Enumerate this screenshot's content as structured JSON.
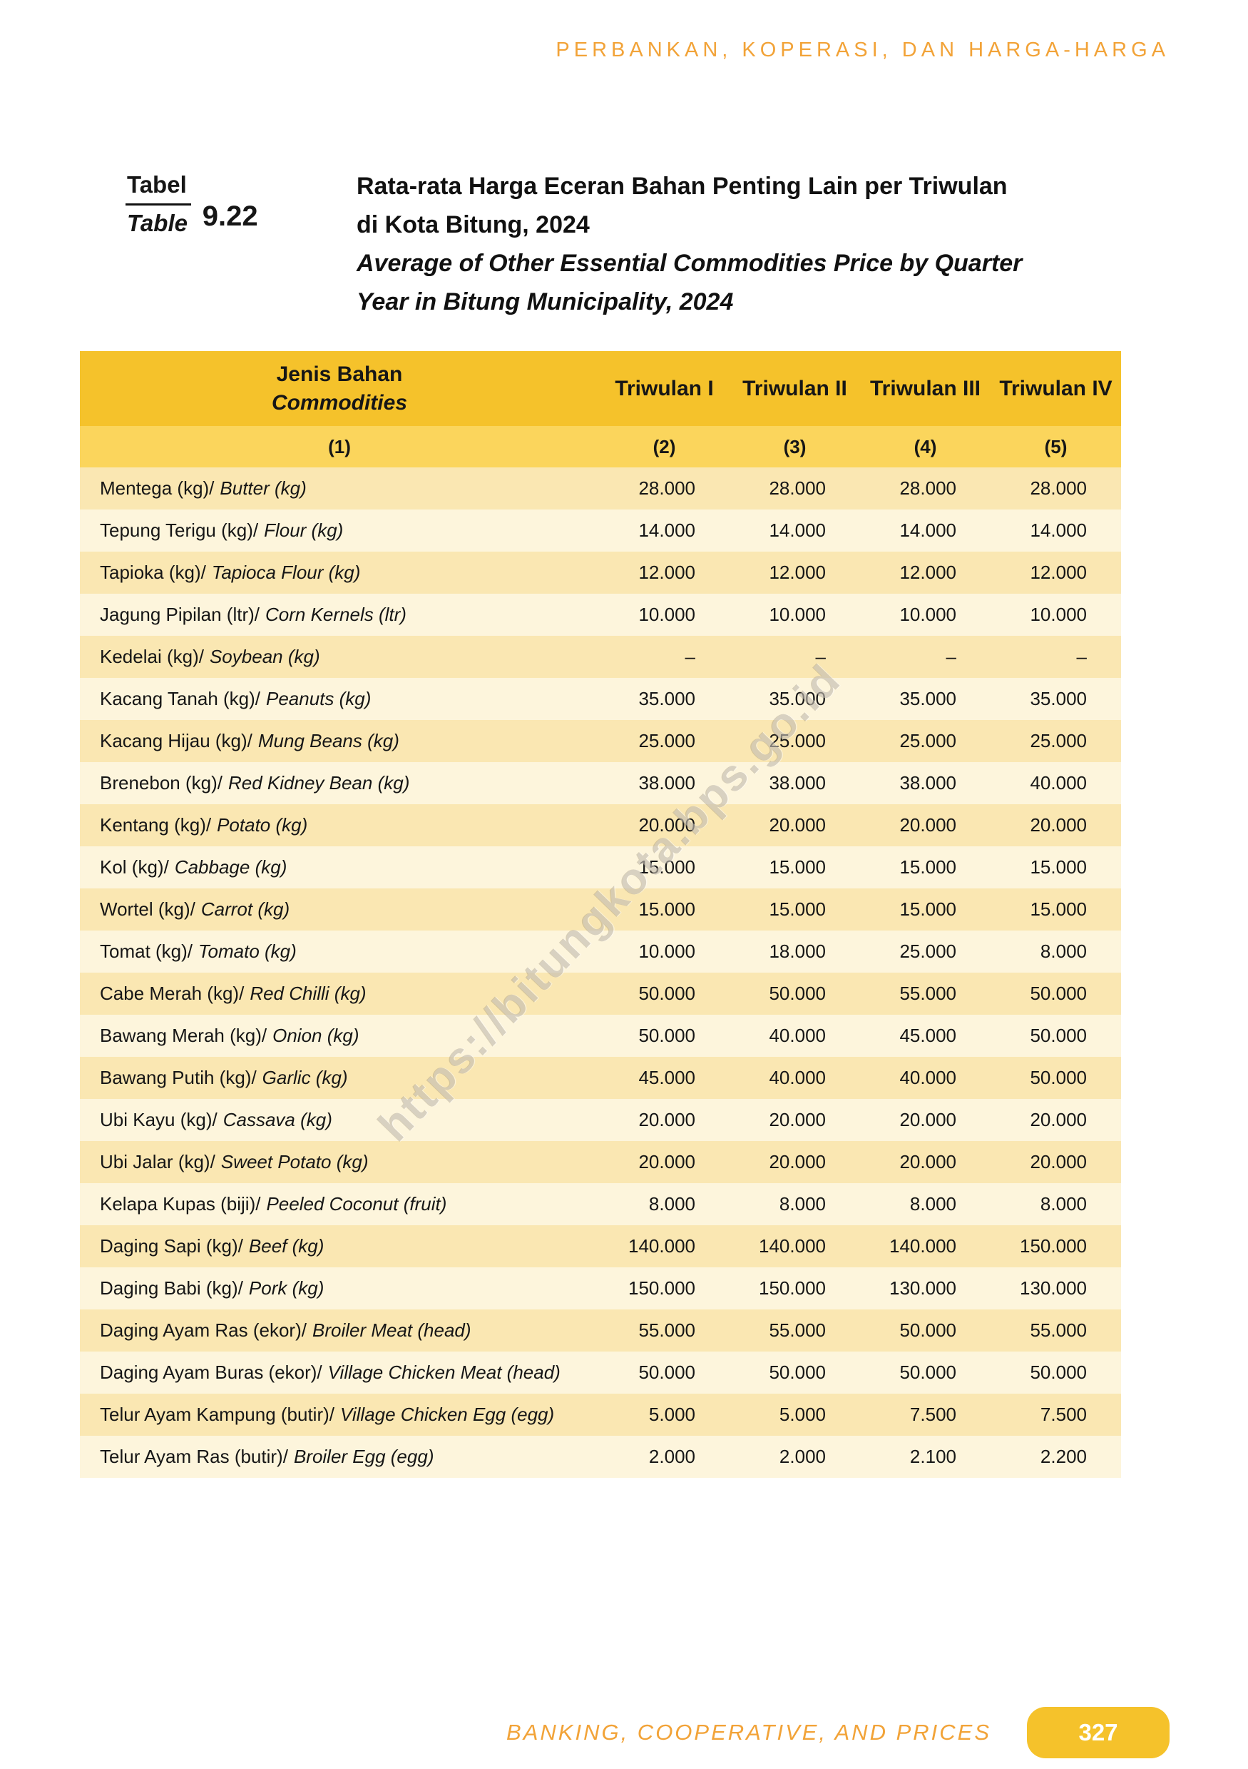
{
  "page": {
    "header": "PERBANKAN, KOPERASI, DAN HARGA-HARGA",
    "footer_text": "BANKING, COOPERATIVE, AND PRICES",
    "page_number": "327",
    "watermark": "https://bitungkota.bps.go.id"
  },
  "table_label": {
    "id_label": "Tabel",
    "en_label": "Table",
    "number": "9.22"
  },
  "title": {
    "id_line1": "Rata-rata Harga Eceran Bahan Penting Lain per Triwulan",
    "id_line2": "di Kota Bitung, 2024",
    "en_line1": "Average of Other Essential Commodities Price by Quarter",
    "en_line2": "Year in Bitung Municipality, 2024"
  },
  "table": {
    "col1_header_id": "Jenis Bahan",
    "col1_header_en": "Commodities",
    "quarter_headers": [
      "Triwulan I",
      "Triwulan II",
      "Triwulan III",
      "Triwulan IV"
    ],
    "col_numbers": [
      "(1)",
      "(2)",
      "(3)",
      "(4)",
      "(5)"
    ],
    "rows": [
      {
        "id": "Mentega (kg)/",
        "en": "Butter (kg)",
        "values": [
          "28.000",
          "28.000",
          "28.000",
          "28.000"
        ]
      },
      {
        "id": "Tepung Terigu (kg)/",
        "en": "Flour (kg)",
        "values": [
          "14.000",
          "14.000",
          "14.000",
          "14.000"
        ]
      },
      {
        "id": "Tapioka (kg)/",
        "en": "Tapioca Flour (kg)",
        "values": [
          "12.000",
          "12.000",
          "12.000",
          "12.000"
        ]
      },
      {
        "id": "Jagung Pipilan (ltr)/",
        "en": "Corn Kernels (ltr)",
        "values": [
          "10.000",
          "10.000",
          "10.000",
          "10.000"
        ]
      },
      {
        "id": "Kedelai (kg)/",
        "en": "Soybean (kg)",
        "values": [
          "–",
          "–",
          "–",
          "–"
        ]
      },
      {
        "id": "Kacang Tanah (kg)/",
        "en": "Peanuts (kg)",
        "values": [
          "35.000",
          "35.000",
          "35.000",
          "35.000"
        ]
      },
      {
        "id": "Kacang Hijau (kg)/",
        "en": "Mung Beans (kg)",
        "values": [
          "25.000",
          "25.000",
          "25.000",
          "25.000"
        ]
      },
      {
        "id": "Brenebon (kg)/",
        "en": "Red Kidney Bean (kg)",
        "values": [
          "38.000",
          "38.000",
          "38.000",
          "40.000"
        ]
      },
      {
        "id": "Kentang (kg)/",
        "en": "Potato (kg)",
        "values": [
          "20.000",
          "20.000",
          "20.000",
          "20.000"
        ]
      },
      {
        "id": "Kol (kg)/",
        "en": "Cabbage (kg)",
        "values": [
          "15.000",
          "15.000",
          "15.000",
          "15.000"
        ]
      },
      {
        "id": "Wortel (kg)/",
        "en": "Carrot (kg)",
        "values": [
          "15.000",
          "15.000",
          "15.000",
          "15.000"
        ]
      },
      {
        "id": "Tomat (kg)/",
        "en": "Tomato (kg)",
        "values": [
          "10.000",
          "18.000",
          "25.000",
          "8.000"
        ]
      },
      {
        "id": "Cabe Merah (kg)/",
        "en": "Red Chilli (kg)",
        "values": [
          "50.000",
          "50.000",
          "55.000",
          "50.000"
        ]
      },
      {
        "id": "Bawang Merah (kg)/",
        "en": "Onion (kg)",
        "values": [
          "50.000",
          "40.000",
          "45.000",
          "50.000"
        ]
      },
      {
        "id": "Bawang Putih (kg)/",
        "en": "Garlic (kg)",
        "values": [
          "45.000",
          "40.000",
          "40.000",
          "50.000"
        ]
      },
      {
        "id": "Ubi Kayu (kg)/",
        "en": "Cassava (kg)",
        "values": [
          "20.000",
          "20.000",
          "20.000",
          "20.000"
        ]
      },
      {
        "id": "Ubi Jalar (kg)/",
        "en": "Sweet Potato (kg)",
        "values": [
          "20.000",
          "20.000",
          "20.000",
          "20.000"
        ]
      },
      {
        "id": "Kelapa Kupas (biji)/",
        "en": "Peeled Coconut (fruit)",
        "values": [
          "8.000",
          "8.000",
          "8.000",
          "8.000"
        ]
      },
      {
        "id": "Daging Sapi (kg)/",
        "en": "Beef (kg)",
        "values": [
          "140.000",
          "140.000",
          "140.000",
          "150.000"
        ]
      },
      {
        "id": "Daging Babi (kg)/",
        "en": "Pork (kg)",
        "values": [
          "150.000",
          "150.000",
          "130.000",
          "130.000"
        ]
      },
      {
        "id": "Daging Ayam Ras (ekor)/",
        "en": "Broiler Meat (head)",
        "values": [
          "55.000",
          "55.000",
          "50.000",
          "55.000"
        ]
      },
      {
        "id": "Daging Ayam Buras (ekor)/",
        "en": "Village Chicken Meat (head)",
        "values": [
          "50.000",
          "50.000",
          "50.000",
          "50.000"
        ]
      },
      {
        "id": "Telur Ayam Kampung (butir)/",
        "en": "Village Chicken Egg (egg)",
        "values": [
          "5.000",
          "5.000",
          "7.500",
          "7.500"
        ]
      },
      {
        "id": "Telur Ayam Ras (butir)/",
        "en": "Broiler Egg (egg)",
        "values": [
          "2.000",
          "2.000",
          "2.100",
          "2.200"
        ]
      }
    ]
  },
  "colors": {
    "accent_orange": "#F2A338",
    "header_gold": "#F5C22B",
    "subheader_gold": "#FBD55C",
    "row_dark": "#FAE7B2",
    "row_light": "#FDF5DC",
    "page_number_text": "#FFFFFF"
  }
}
